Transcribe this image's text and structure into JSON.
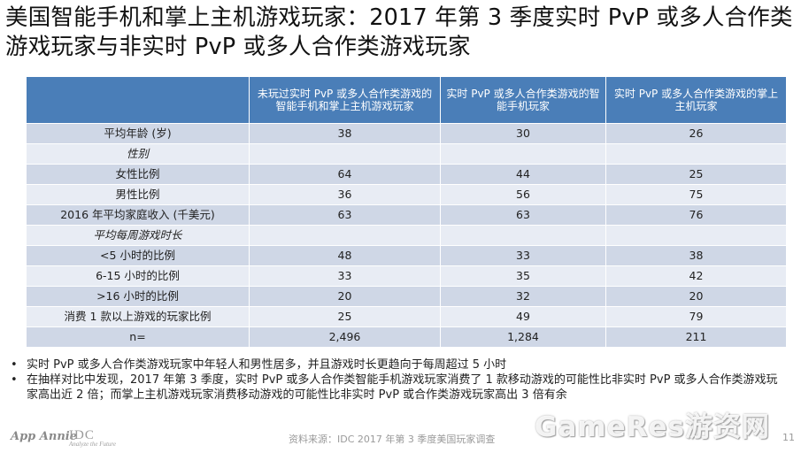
{
  "title": "美国智能手机和掌上主机游戏玩家：2017 年第 3 季度实时 PvP 或多人合作类游戏玩家与非实时 PvP 或多人合作类游戏玩家",
  "table": {
    "headers": [
      "",
      "未玩过实时 PvP 或多人合作类游戏的智能手机和掌上主机游戏玩家",
      "实时 PvP 或多人合作类游戏的智能手机玩家",
      "实时 PvP 或多人合作类游戏的掌上主机玩家"
    ],
    "rows": [
      {
        "label": "平均年龄 (岁)",
        "c1": "38",
        "c2": "30",
        "c3": "26"
      },
      {
        "label": "性别",
        "c1": "",
        "c2": "",
        "c3": ""
      },
      {
        "label": "女性比例",
        "c1": "64",
        "c2": "44",
        "c3": "25"
      },
      {
        "label": "男性比例",
        "c1": "36",
        "c2": "56",
        "c3": "75"
      },
      {
        "label": "2016 年平均家庭收入 (千美元)",
        "c1": "63",
        "c2": "63",
        "c3": "76"
      },
      {
        "label": "平均每周游戏时长",
        "c1": "",
        "c2": "",
        "c3": ""
      },
      {
        "label": "<5 小时的比例",
        "c1": "48",
        "c2": "33",
        "c3": "38"
      },
      {
        "label": "6-15 小时的比例",
        "c1": "33",
        "c2": "35",
        "c3": "42"
      },
      {
        "label": ">16 小时的比例",
        "c1": "20",
        "c2": "32",
        "c3": "20"
      },
      {
        "label": "消费 1 款以上游戏的玩家比例",
        "c1": "25",
        "c2": "49",
        "c3": "79"
      },
      {
        "label": "n=",
        "c1": "2,496",
        "c2": "1,284",
        "c3": "211"
      }
    ]
  },
  "notes": {
    "bullet": "•",
    "items": [
      "实时 PvP 或多人合作类游戏玩家中年轻人和男性居多，并且游戏时长更趋向于每周超过 5 小时",
      "在抽样对比中发现，2017 年第 3 季度，实时 PvP 或多人合作类智能手机游戏玩家消费了 1 款移动游戏的可能性比非实时 PvP 或多人合作类游戏玩家高出近 2 倍；而掌上主机游戏玩家消费移动游戏的可能性比非实时 PvP 或合作类游戏玩家高出 3 倍有余"
    ]
  },
  "footer": {
    "logo_appannie": "App Annie",
    "logo_idc": "IDC",
    "logo_idc_tagline": "Analyze the Future",
    "source": "资料来源：IDC 2017 年第 3 季度美国玩家调查",
    "page_number": "11",
    "watermark": "GameRes游资网"
  },
  "colors": {
    "header_bg": "#4a7eb8",
    "row_odd": "#cfd7e6",
    "row_even": "#e8ecf4"
  }
}
